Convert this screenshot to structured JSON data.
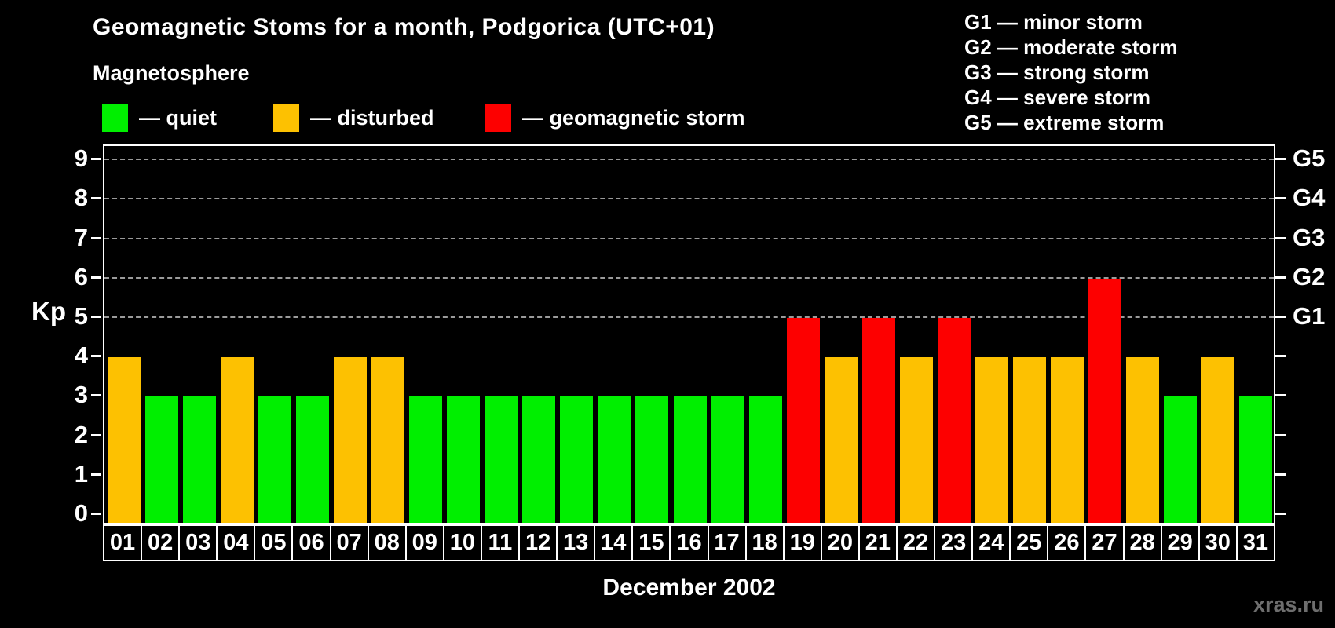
{
  "title": "Geomagnetic Stoms for a month, Podgorica (UTC+01)",
  "subtitle": "Magnetosphere",
  "legend": {
    "items": [
      {
        "key": "quiet",
        "label": "— quiet",
        "color": "#00ef00"
      },
      {
        "key": "disturbed",
        "label": "— disturbed",
        "color": "#fdc101"
      },
      {
        "key": "storm",
        "label": "— geomagnetic storm",
        "color": "#fd0000"
      }
    ]
  },
  "g_legend": [
    "G1 — minor storm",
    "G2 — moderate storm",
    "G3 — strong storm",
    "G4 — severe storm",
    "G5 — extreme storm"
  ],
  "axis": {
    "kp_label": "Kp",
    "month_label": "December 2002"
  },
  "watermark": "xras.ru",
  "chart_data": {
    "type": "bar",
    "title": "Geomagnetic Stoms for a month, Podgorica (UTC+01)",
    "xlabel": "December 2002",
    "ylabel": "Kp",
    "ylim": [
      0,
      9.4
    ],
    "yticks": [
      0,
      1,
      2,
      3,
      4,
      5,
      6,
      7,
      8,
      9
    ],
    "gridlines_at": [
      5,
      6,
      7,
      8,
      9
    ],
    "grid": "dashed-horizontal-upper-only",
    "legend_position": "top-left",
    "right_axis_labels": [
      {
        "label": "G1",
        "kp": 5
      },
      {
        "label": "G2",
        "kp": 6
      },
      {
        "label": "G3",
        "kp": 7
      },
      {
        "label": "G4",
        "kp": 8
      },
      {
        "label": "G5",
        "kp": 9
      }
    ],
    "categories": [
      "01",
      "02",
      "03",
      "04",
      "05",
      "06",
      "07",
      "08",
      "09",
      "10",
      "11",
      "12",
      "13",
      "14",
      "15",
      "16",
      "17",
      "18",
      "19",
      "20",
      "21",
      "22",
      "23",
      "24",
      "25",
      "26",
      "27",
      "28",
      "29",
      "30",
      "31"
    ],
    "values": [
      4,
      3,
      3,
      4,
      3,
      3,
      4,
      4,
      3,
      3,
      3,
      3,
      3,
      3,
      3,
      3,
      3,
      3,
      5,
      4,
      5,
      4,
      5,
      4,
      4,
      4,
      6,
      4,
      3,
      4,
      3
    ],
    "statuses": [
      "disturbed",
      "quiet",
      "quiet",
      "disturbed",
      "quiet",
      "quiet",
      "disturbed",
      "disturbed",
      "quiet",
      "quiet",
      "quiet",
      "quiet",
      "quiet",
      "quiet",
      "quiet",
      "quiet",
      "quiet",
      "quiet",
      "storm",
      "disturbed",
      "storm",
      "disturbed",
      "storm",
      "disturbed",
      "disturbed",
      "disturbed",
      "storm",
      "disturbed",
      "quiet",
      "disturbed",
      "quiet"
    ],
    "colors": {
      "quiet": "#00ef00",
      "disturbed": "#fdc101",
      "storm": "#fd0000"
    }
  }
}
